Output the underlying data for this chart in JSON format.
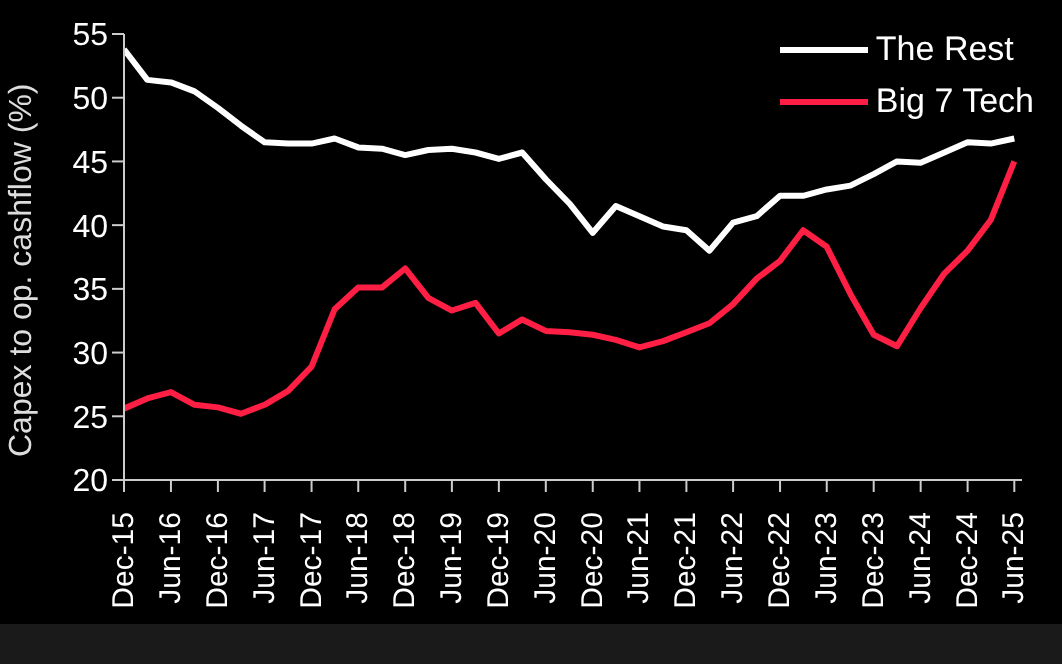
{
  "chart_data": {
    "type": "line",
    "ylabel": "Capex to op. cashflow (%)",
    "x": [
      "2015-12",
      "2016-03",
      "2016-06",
      "2016-09",
      "2016-12",
      "2017-03",
      "2017-06",
      "2017-09",
      "2017-12",
      "2018-03",
      "2018-06",
      "2018-09",
      "2018-12",
      "2019-03",
      "2019-06",
      "2019-09",
      "2019-12",
      "2020-03",
      "2020-06",
      "2020-09",
      "2020-12",
      "2021-03",
      "2021-06",
      "2021-09",
      "2021-12",
      "2022-03",
      "2022-06",
      "2022-09",
      "2022-12",
      "2023-03",
      "2023-06",
      "2023-09",
      "2023-12",
      "2024-03",
      "2024-06",
      "2024-09",
      "2024-12",
      "2025-03",
      "2025-06"
    ],
    "series": [
      {
        "name": "The Rest",
        "color": "#ffffff",
        "values": [
          53.8,
          51.4,
          51.2,
          50.5,
          49.2,
          47.8,
          46.5,
          46.4,
          46.4,
          46.8,
          46.1,
          46.0,
          45.5,
          45.9,
          46.0,
          45.7,
          45.2,
          45.7,
          43.6,
          41.7,
          39.4,
          41.5,
          40.7,
          39.9,
          39.6,
          38.0,
          40.2,
          40.7,
          42.3,
          42.3,
          42.8,
          43.1,
          44.0,
          45.0,
          44.9,
          45.7,
          46.5,
          46.4,
          46.8
        ]
      },
      {
        "name": "Big 7 Tech",
        "color": "#ff1f44",
        "values": [
          25.6,
          26.4,
          26.9,
          25.9,
          25.7,
          25.2,
          25.9,
          27.0,
          28.9,
          33.4,
          35.1,
          35.1,
          36.6,
          34.3,
          33.3,
          33.9,
          31.5,
          32.6,
          31.7,
          31.6,
          31.4,
          31.0,
          30.4,
          30.9,
          31.6,
          32.3,
          33.8,
          35.8,
          37.2,
          39.6,
          38.3,
          34.6,
          31.4,
          30.5,
          33.5,
          36.2,
          38.0,
          40.4,
          45.0
        ]
      }
    ],
    "xlim": [
      "2015-12",
      "2025-07"
    ],
    "xticks": [
      {
        "value": "2015-12",
        "label": "Dec-15"
      },
      {
        "value": "2016-06",
        "label": "Jun-16"
      },
      {
        "value": "2016-12",
        "label": "Dec-16"
      },
      {
        "value": "2017-06",
        "label": "Jun-17"
      },
      {
        "value": "2017-12",
        "label": "Dec-17"
      },
      {
        "value": "2018-06",
        "label": "Jun-18"
      },
      {
        "value": "2018-12",
        "label": "Dec-18"
      },
      {
        "value": "2019-06",
        "label": "Jun-19"
      },
      {
        "value": "2019-12",
        "label": "Dec-19"
      },
      {
        "value": "2020-06",
        "label": "Jun-20"
      },
      {
        "value": "2020-12",
        "label": "Dec-20"
      },
      {
        "value": "2021-06",
        "label": "Jun-21"
      },
      {
        "value": "2021-12",
        "label": "Dec-21"
      },
      {
        "value": "2022-06",
        "label": "Jun-22"
      },
      {
        "value": "2022-12",
        "label": "Dec-22"
      },
      {
        "value": "2023-06",
        "label": "Jun-23"
      },
      {
        "value": "2023-12",
        "label": "Dec-23"
      },
      {
        "value": "2024-06",
        "label": "Jun-24"
      },
      {
        "value": "2024-12",
        "label": "Dec-24"
      },
      {
        "value": "2025-06",
        "label": "Jun-25"
      }
    ],
    "ylim": [
      20,
      55
    ],
    "yticks": [
      20,
      25,
      30,
      35,
      40,
      45,
      50,
      55
    ],
    "grid": false,
    "legend": "top right",
    "marker": "none",
    "line_style": "solid"
  }
}
